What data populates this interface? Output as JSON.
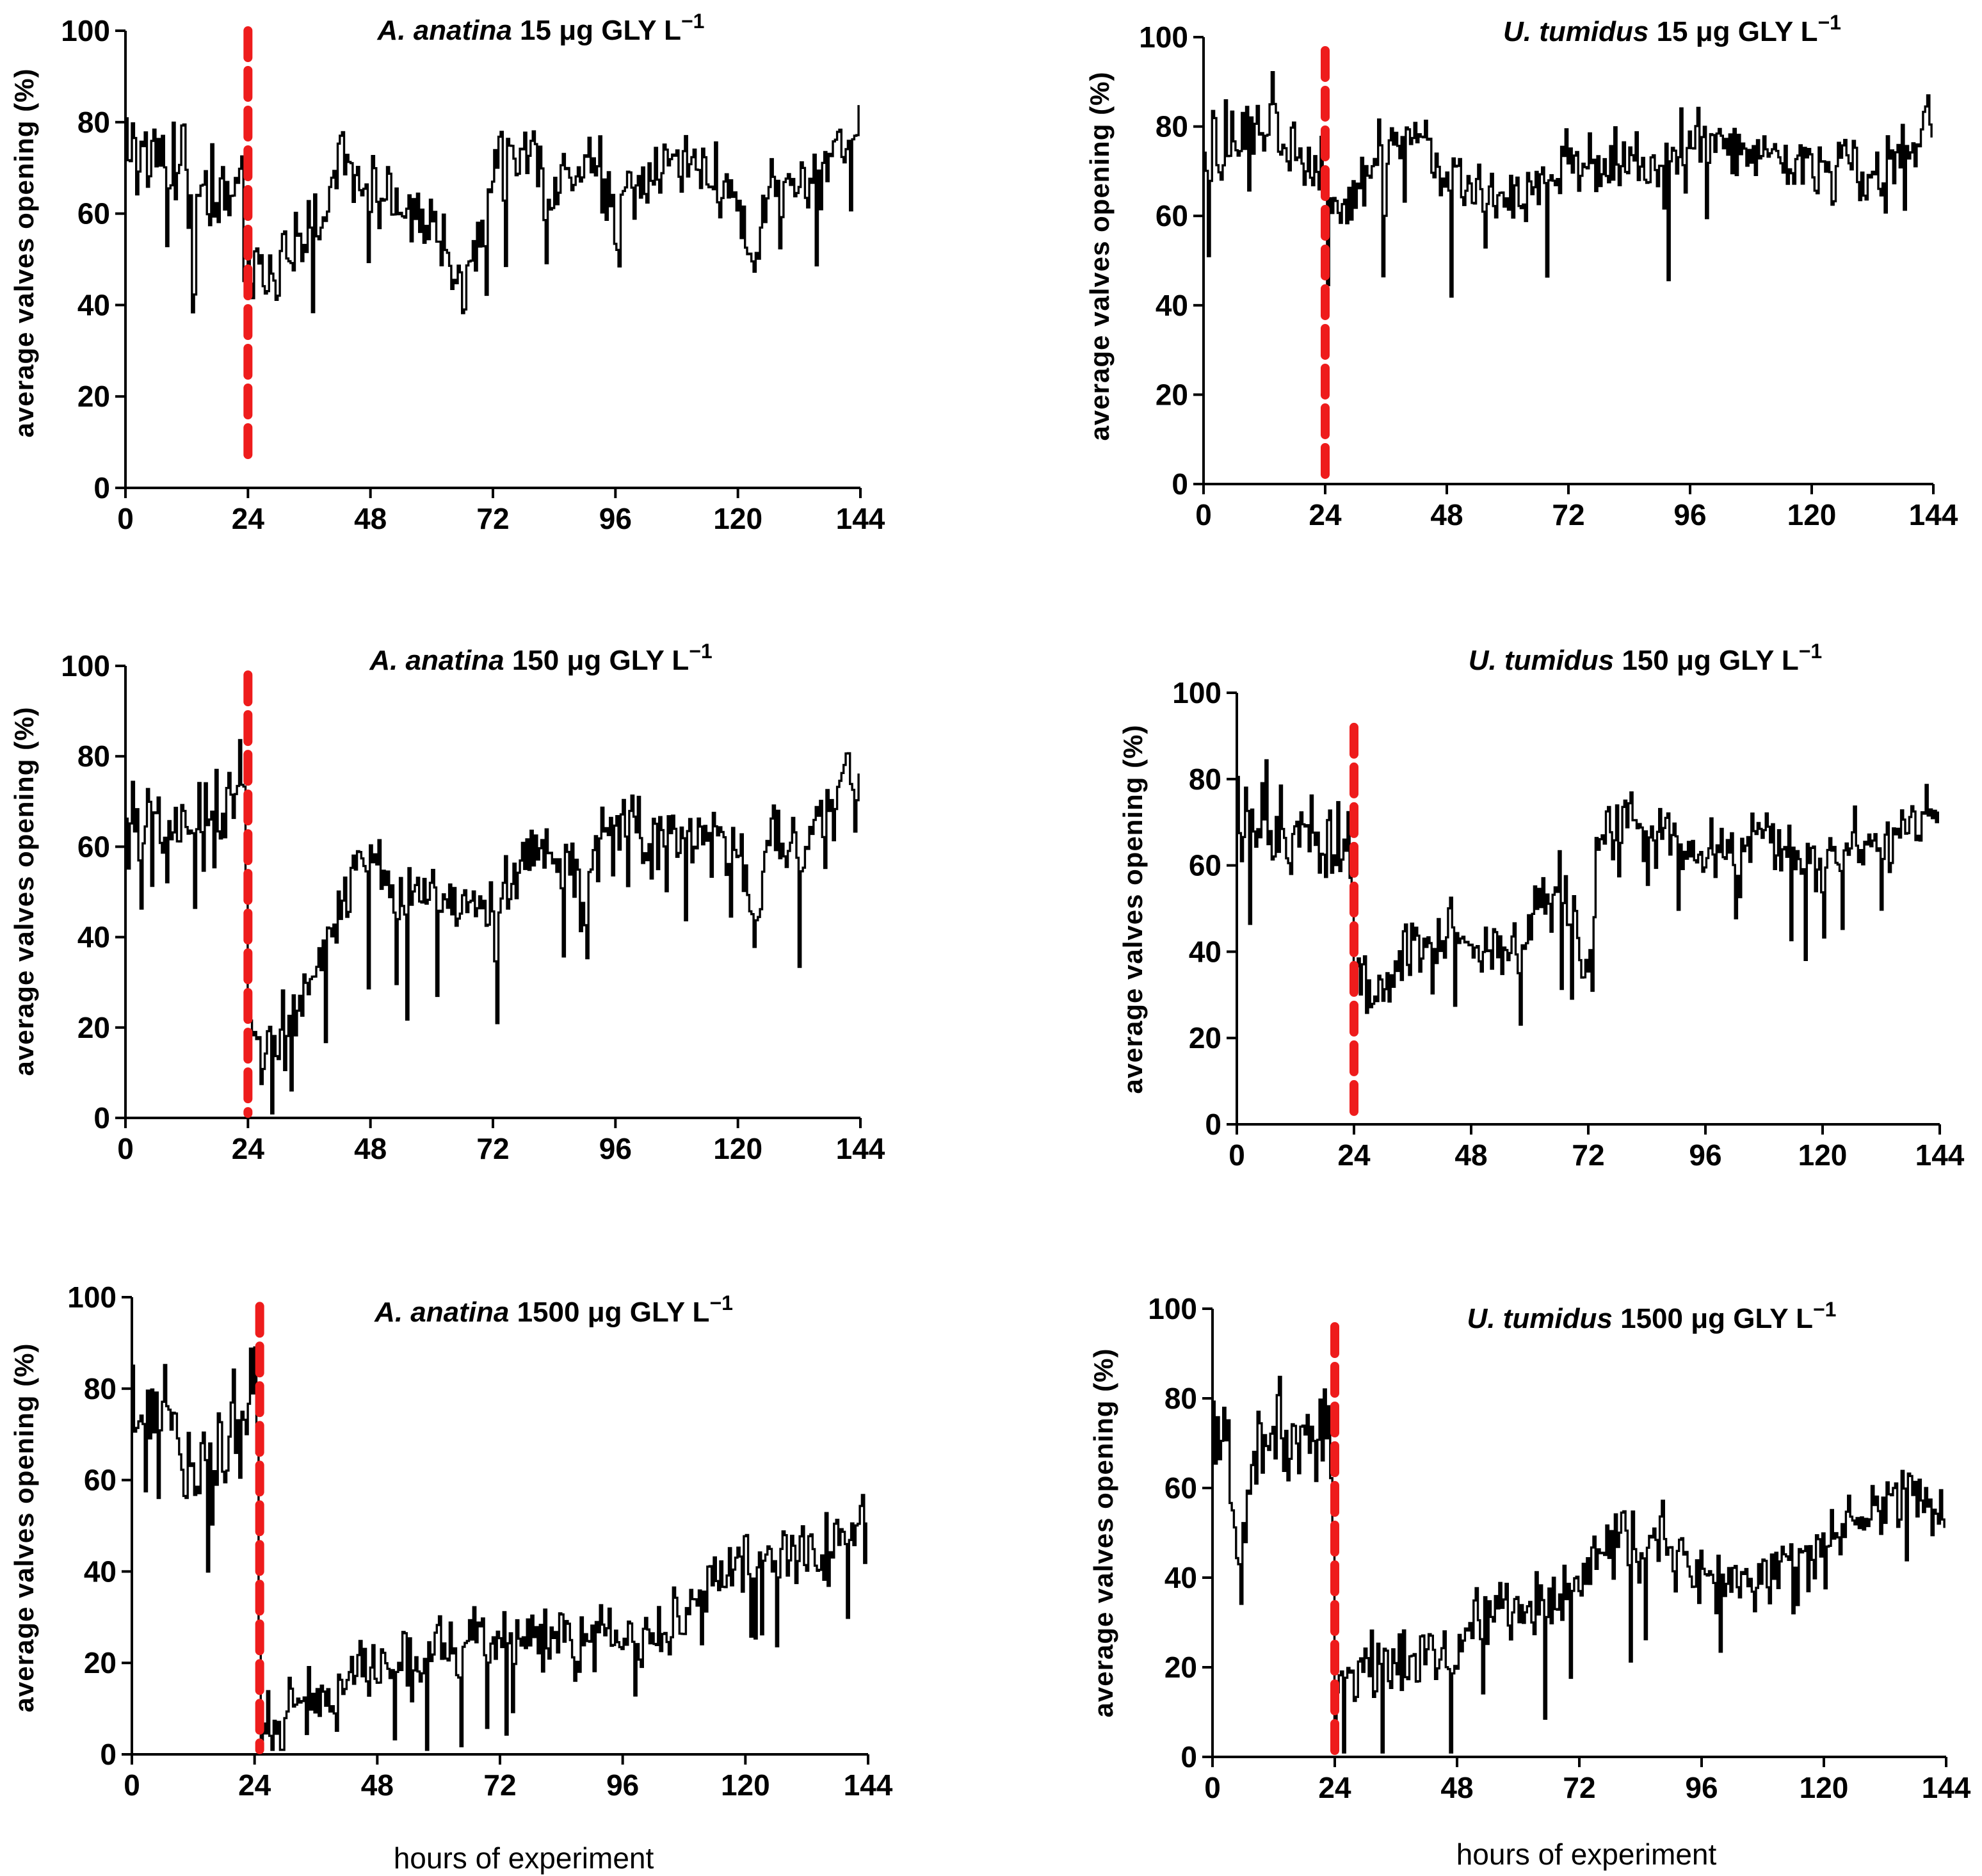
{
  "figure": {
    "common_xlabel": "hours of experiment"
  },
  "chart_data": [
    {
      "type": "line",
      "title": {
        "species": "A. anatina",
        "dose": "15",
        "unit": "μg",
        "rest": "GLY L",
        "sup": "−1"
      },
      "ylabel": "average valves opening   (%)",
      "xlabel": "",
      "xlim": [
        0,
        144
      ],
      "ylim": [
        0,
        100
      ],
      "xticks": [
        0,
        24,
        48,
        72,
        96,
        120,
        144
      ],
      "yticks": [
        0,
        20,
        40,
        60,
        80,
        100
      ],
      "exposure_start_hour": 24,
      "marker_range": [
        5,
        100
      ],
      "series": [
        {
          "name": "A. anatina 15 μg GLY L−1",
          "x": [
            0,
            6,
            12,
            18,
            23,
            24,
            27,
            32,
            38,
            42,
            48,
            54,
            60,
            66,
            69,
            72,
            76,
            80,
            84,
            90,
            96,
            102,
            108,
            114,
            120,
            123,
            126,
            132,
            138,
            144
          ],
          "values": [
            75,
            72,
            68,
            63,
            61,
            48,
            46,
            51,
            57,
            72,
            66,
            62,
            58,
            45,
            49,
            70,
            72,
            71,
            66,
            70,
            65,
            68,
            71,
            69,
            63,
            48,
            68,
            67,
            70,
            80
          ]
        }
      ]
    },
    {
      "type": "line",
      "title": {
        "species": "U. tumidus",
        "dose": "15",
        "unit": "μg",
        "rest": "GLY L",
        "sup": "−1"
      },
      "ylabel": "average valves opening   (%)",
      "xlabel": "",
      "xlim": [
        0,
        144
      ],
      "ylim": [
        0,
        100
      ],
      "xticks": [
        0,
        24,
        48,
        72,
        96,
        120,
        144
      ],
      "yticks": [
        0,
        20,
        40,
        60,
        80,
        100
      ],
      "exposure_start_hour": 24,
      "marker_range": [
        1,
        97
      ],
      "series": [
        {
          "name": "U. tumidus 15 μg GLY L−1",
          "x": [
            0,
            6,
            12,
            18,
            23,
            24,
            27,
            32,
            38,
            44,
            48,
            54,
            60,
            66,
            72,
            78,
            84,
            90,
            96,
            102,
            108,
            114,
            120,
            126,
            132,
            138,
            144
          ],
          "values": [
            72,
            78,
            80,
            76,
            74,
            64,
            62,
            70,
            76,
            80,
            66,
            68,
            64,
            68,
            72,
            70,
            71,
            68,
            78,
            74,
            72,
            73,
            70,
            72,
            68,
            75,
            80
          ]
        }
      ]
    },
    {
      "type": "line",
      "title": {
        "species": "A. anatina",
        "dose": "150",
        "unit": "μg",
        "rest": "GLY L",
        "sup": "−1"
      },
      "ylabel": "average valves opening   (%)",
      "xlabel": "",
      "xlim": [
        0,
        144
      ],
      "ylim": [
        0,
        100
      ],
      "xticks": [
        0,
        24,
        48,
        72,
        96,
        120,
        144
      ],
      "yticks": [
        0,
        20,
        40,
        60,
        80,
        100
      ],
      "exposure_start_hour": 24,
      "marker_range": [
        1,
        98
      ],
      "series": [
        {
          "name": "A. anatina 150 μg GLY L−1",
          "x": [
            0,
            6,
            12,
            18,
            23,
            24,
            27,
            32,
            36,
            40,
            44,
            48,
            54,
            60,
            66,
            72,
            78,
            84,
            90,
            96,
            102,
            108,
            114,
            120,
            123,
            126,
            132,
            138,
            144
          ],
          "values": [
            62,
            64,
            66,
            70,
            78,
            20,
            18,
            20,
            28,
            40,
            52,
            58,
            48,
            50,
            45,
            46,
            60,
            58,
            55,
            66,
            62,
            60,
            62,
            60,
            40,
            62,
            58,
            70,
            75
          ]
        }
      ]
    },
    {
      "type": "line",
      "title": {
        "species": "U. tumidus",
        "dose": "150",
        "unit": "μg",
        "rest": "GLY L",
        "sup": "−1"
      },
      "ylabel": "average valves opening   (%)",
      "xlabel": "",
      "xlim": [
        0,
        144
      ],
      "ylim": [
        0,
        100
      ],
      "xticks": [
        0,
        24,
        48,
        72,
        96,
        120,
        144
      ],
      "yticks": [
        0,
        20,
        40,
        60,
        80,
        100
      ],
      "exposure_start_hour": 24,
      "marker_range": [
        1,
        92
      ],
      "series": [
        {
          "name": "U. tumidus 150 μg GLY L−1",
          "x": [
            0,
            6,
            12,
            18,
            23,
            24,
            27,
            32,
            38,
            44,
            48,
            54,
            60,
            66,
            70,
            72,
            74,
            78,
            84,
            90,
            96,
            102,
            108,
            114,
            120,
            126,
            132,
            138,
            144
          ],
          "values": [
            74,
            70,
            66,
            64,
            62,
            38,
            28,
            36,
            42,
            46,
            44,
            40,
            46,
            58,
            42,
            28,
            68,
            70,
            66,
            64,
            62,
            66,
            66,
            62,
            60,
            66,
            64,
            72,
            70
          ]
        }
      ]
    },
    {
      "type": "line",
      "title": {
        "species": "A. anatina",
        "dose": "1500",
        "unit": "μg",
        "rest": "GLY L",
        "sup": "−1"
      },
      "ylabel": "average valves opening   (%)",
      "xlabel": "hours of experiment",
      "xlim": [
        0,
        144
      ],
      "ylim": [
        0,
        100
      ],
      "xticks": [
        0,
        24,
        48,
        72,
        96,
        120,
        144
      ],
      "yticks": [
        0,
        20,
        40,
        60,
        80,
        100
      ],
      "exposure_start_hour": 25,
      "marker_range": [
        1,
        98
      ],
      "series": [
        {
          "name": "A. anatina 1500 μg GLY L−1",
          "x": [
            0,
            4,
            8,
            12,
            16,
            20,
            24,
            25,
            28,
            32,
            36,
            40,
            44,
            48,
            54,
            60,
            66,
            72,
            78,
            84,
            90,
            96,
            102,
            108,
            114,
            120,
            126,
            132,
            138,
            144
          ],
          "values": [
            76,
            74,
            70,
            64,
            62,
            74,
            80,
            10,
            8,
            12,
            12,
            14,
            18,
            18,
            20,
            25,
            26,
            26,
            26,
            25,
            24,
            28,
            26,
            32,
            38,
            43,
            42,
            45,
            46,
            50
          ]
        }
      ]
    },
    {
      "type": "line",
      "title": {
        "species": "U. tumidus",
        "dose": "1500",
        "unit": "μg",
        "rest": "GLY L",
        "sup": "−1"
      },
      "ylabel": "average valves opening   (%)",
      "xlabel": "hours of experiment",
      "xlim": [
        0,
        144
      ],
      "ylim": [
        0,
        100
      ],
      "xticks": [
        0,
        24,
        48,
        72,
        96,
        120,
        144
      ],
      "yticks": [
        0,
        20,
        40,
        60,
        80,
        100
      ],
      "exposure_start_hour": 24,
      "marker_range": [
        1,
        96
      ],
      "series": [
        {
          "name": "U. tumidus 1500 μg GLY L−1",
          "x": [
            0,
            3,
            5,
            8,
            12,
            16,
            20,
            23,
            24,
            26,
            30,
            36,
            42,
            48,
            52,
            56,
            62,
            68,
            72,
            76,
            84,
            90,
            94,
            98,
            104,
            110,
            116,
            120,
            124,
            130,
            136,
            144
          ],
          "values": [
            75,
            68,
            40,
            72,
            70,
            72,
            74,
            78,
            18,
            18,
            20,
            22,
            24,
            22,
            34,
            34,
            33,
            34,
            40,
            48,
            48,
            50,
            42,
            41,
            41,
            42,
            46,
            46,
            53,
            54,
            59,
            53
          ]
        }
      ]
    }
  ]
}
